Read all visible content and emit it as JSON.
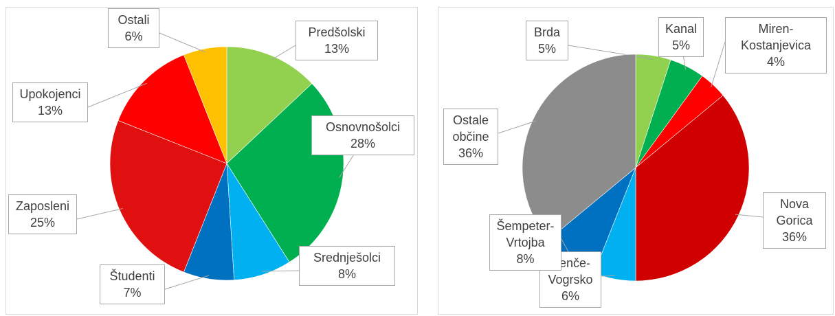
{
  "chart_data": [
    {
      "type": "pie",
      "categories": [
        "Predšolski",
        "Osnovnošolci",
        "Srednješolci",
        "Študenti",
        "Zaposleni",
        "Upokojenci",
        "Ostali"
      ],
      "values": [
        13,
        28,
        8,
        7,
        25,
        13,
        6
      ],
      "value_labels": [
        "13%",
        "28%",
        "8%",
        "7%",
        "25%",
        "13%",
        "6%"
      ],
      "colors": [
        "#92d050",
        "#00b050",
        "#00b0f0",
        "#0070c0",
        "#e01010",
        "#ff0000",
        "#ffc000"
      ]
    },
    {
      "type": "pie",
      "categories": [
        "Brda",
        "Kanal",
        "Miren-Kostanjevica",
        "Nova Gorica",
        "Renče-Vogrsko",
        "Šempeter-Vrtojba",
        "Ostale občine"
      ],
      "values": [
        5,
        5,
        4,
        36,
        6,
        8,
        36
      ],
      "value_labels": [
        "5%",
        "5%",
        "4%",
        "36%",
        "6%",
        "8%",
        "36%"
      ],
      "colors": [
        "#92d050",
        "#00b050",
        "#ff0000",
        "#d00000",
        "#00b0f0",
        "#0070c0",
        "#8c8c8c"
      ]
    }
  ]
}
